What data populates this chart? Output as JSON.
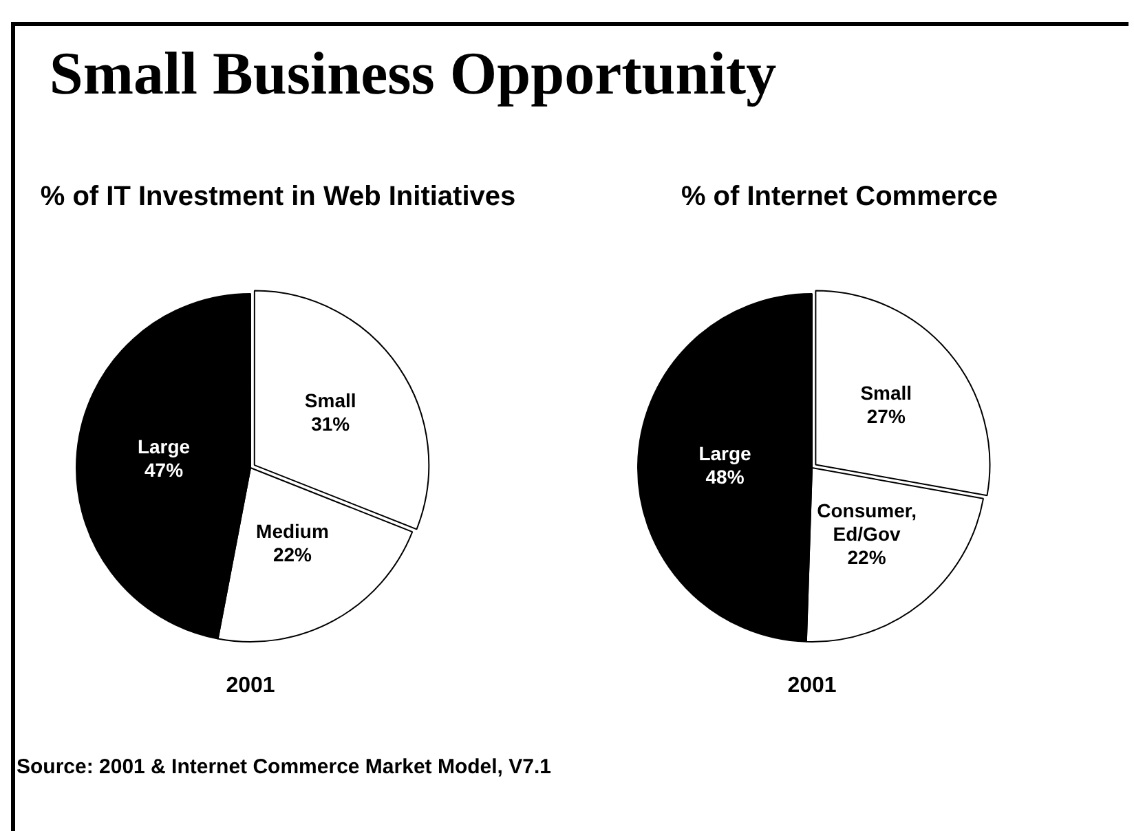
{
  "chart_data": [
    {
      "type": "pie",
      "title": "Small Business Opportunity",
      "subtitle": "% of IT Investment in Web Initiatives",
      "categories": [
        "Small",
        "Medium",
        "Large"
      ],
      "values": [
        31,
        22,
        47
      ],
      "value_labels": [
        "31%",
        "22%",
        "47%"
      ],
      "colors": [
        "#ffffff",
        "#ffffff",
        "#000000"
      ],
      "annotations": [
        "2001",
        "Source: 2001 & Internet Commerce Market Model, V7.1"
      ]
    },
    {
      "type": "pie",
      "subtitle": "% of Internet Commerce",
      "categories": [
        "Small",
        "Consumer, Ed/Gov",
        "Large"
      ],
      "values": [
        27,
        22,
        48
      ],
      "value_labels": [
        "27%",
        "22%",
        "48%"
      ],
      "colors": [
        "#ffffff",
        "#ffffff",
        "#000000"
      ],
      "annotations": [
        "2001"
      ]
    }
  ]
}
